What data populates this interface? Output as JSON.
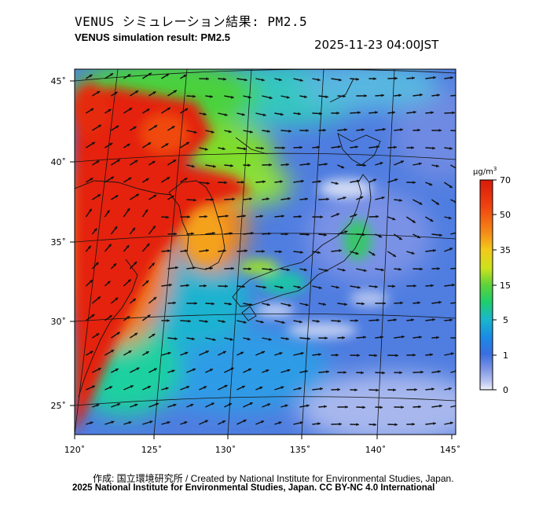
{
  "header": {
    "title_ja": "VENUS シミュレーション結果: PM2.5",
    "title_en": "VENUS simulation result: PM2.5",
    "timestamp": "2025-11-23 04:00JST"
  },
  "map": {
    "lat_ticks": [
      "45˚",
      "40˚",
      "35˚",
      "30˚",
      "25˚"
    ],
    "lon_ticks": [
      "120˚",
      "125˚",
      "130˚",
      "135˚",
      "140˚",
      "145˚"
    ]
  },
  "colorbar": {
    "unit_prefix": "μg/m",
    "unit_sup": "3",
    "tick_labels": [
      "70",
      "50",
      "35",
      "15",
      "5",
      "1",
      "0"
    ],
    "colors": [
      "#d81a0a",
      "#f04010",
      "#f58a18",
      "#f4c81a",
      "#cde21c",
      "#5fd23a",
      "#1fcf6a",
      "#1ab8c9",
      "#1a8ae6",
      "#3a6ee0",
      "#7d95e4",
      "#b7c3f0",
      "#eef0fa"
    ]
  },
  "footer": {
    "credit": "作成: 国立環境研究所 / Created by National Institute for Environmental Studies, Japan.",
    "copyright": "2025 National Institute for Environmental Studies, Japan. CC BY-NC 4.0 International"
  }
}
